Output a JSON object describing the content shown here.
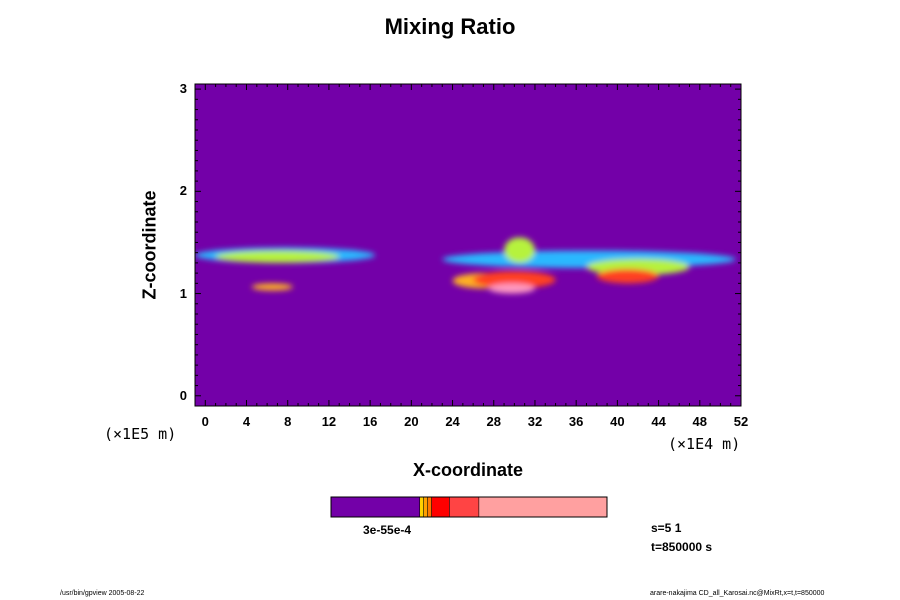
{
  "chart_data": {
    "type": "heatmap",
    "title": "Mixing Ratio",
    "xlabel": "X-coordinate",
    "ylabel": "Z-coordinate",
    "x_unit": "(×1E4 m)",
    "y_unit": "(×1E5 m)",
    "xlim": [
      -1,
      52
    ],
    "ylim": [
      -0.1,
      3.05
    ],
    "x_ticks": [
      "0",
      "4",
      "8",
      "12",
      "16",
      "20",
      "24",
      "28",
      "32",
      "36",
      "40",
      "44",
      "48",
      "52"
    ],
    "x_tick_values": [
      0,
      4,
      8,
      12,
      16,
      20,
      24,
      28,
      32,
      36,
      40,
      44,
      48,
      52
    ],
    "y_ticks": [
      "0",
      "1",
      "2",
      "3"
    ],
    "y_tick_values": [
      0,
      1,
      2,
      3
    ],
    "colorbar": {
      "label": "3e-55e-4",
      "levels": [
        0,
        4.5,
        4.7,
        4.9,
        5.1,
        6.0,
        7.5,
        14.0
      ],
      "colors": [
        "#7300a8",
        "#ffd000",
        "#ffa000",
        "#ff7800",
        "#ff0000",
        "#ff4444",
        "#ffa0a0"
      ]
    },
    "background_color": "#7300a8",
    "regions": [
      {
        "band": 0,
        "x": [
          -1,
          16.5
        ],
        "z": [
          1.3,
          1.45
        ]
      },
      {
        "band": 0,
        "x": [
          23,
          51.5
        ],
        "z": [
          1.25,
          1.42
        ]
      },
      {
        "band": 1,
        "x": [
          1,
          13
        ],
        "z": [
          1.3,
          1.42
        ]
      },
      {
        "band": 1,
        "x": [
          29,
          32
        ],
        "z": [
          1.3,
          1.55
        ]
      },
      {
        "band": 1,
        "x": [
          37,
          47
        ],
        "z": [
          1.18,
          1.34
        ]
      },
      {
        "band": 2,
        "x": [
          4.5,
          8.5
        ],
        "z": [
          1.03,
          1.1
        ]
      },
      {
        "band": 2,
        "x": [
          24,
          30
        ],
        "z": [
          1.05,
          1.2
        ]
      },
      {
        "band": 3,
        "x": [
          26,
          34
        ],
        "z": [
          1.05,
          1.22
        ]
      },
      {
        "band": 3,
        "x": [
          38,
          44
        ],
        "z": [
          1.1,
          1.24
        ]
      },
      {
        "band": 4,
        "x": [
          27.5,
          32
        ],
        "z": [
          1.0,
          1.1
        ]
      }
    ]
  },
  "status": {
    "s": "s=5 1",
    "t": "t=850000 s"
  },
  "footer": {
    "left": "/usr/bin/gpview 2005-08-22",
    "right": "arare-nakajima CD_all_Karosai.nc@MixRt,x=t,t=850000"
  }
}
